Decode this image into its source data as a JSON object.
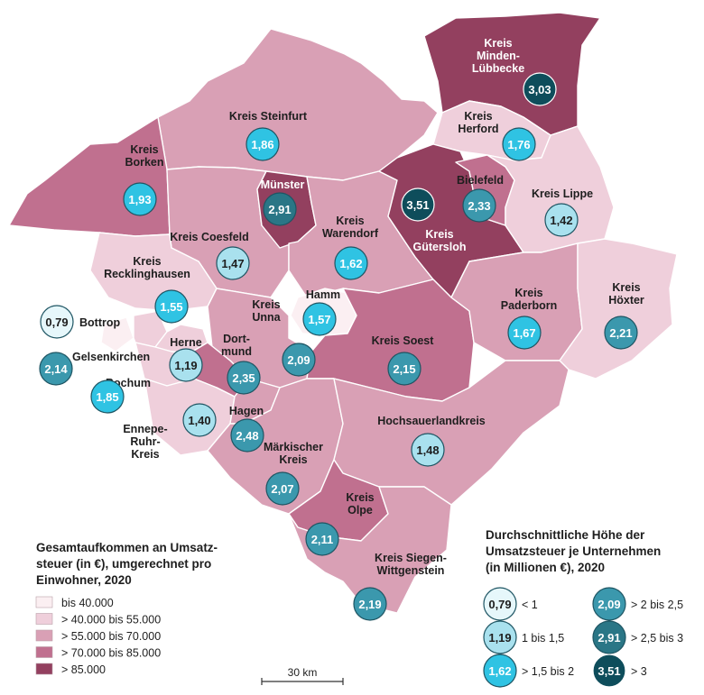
{
  "colors": {
    "class1": "#fbeff2",
    "class2": "#efcfdb",
    "class3": "#d9a0b5",
    "class4": "#c0708f",
    "class5": "#93405f",
    "bubble_lt1": "#e6f7fb",
    "bubble_1_15": "#a9e1ee",
    "bubble_15_2": "#2fc3e3",
    "bubble_2_25": "#3b98ad",
    "bubble_25_3": "#2a7686",
    "bubble_gt3": "#0e4d5b"
  },
  "regions": [
    {
      "id": "steinfurt",
      "name": "Kreis Steinfurt",
      "class": 3
    },
    {
      "id": "borken",
      "name": "Kreis\nBorken",
      "class": 4
    },
    {
      "id": "minden",
      "name": "Kreis\nMinden-\nLübbecke",
      "class": 5
    },
    {
      "id": "herford",
      "name": "Kreis\nHerford",
      "class": 2
    },
    {
      "id": "muenster",
      "name": "Münster",
      "class": 5
    },
    {
      "id": "coesfeld",
      "name": "Kreis Coesfeld",
      "class": 3
    },
    {
      "id": "warendorf",
      "name": "Kreis\nWarendorf",
      "class": 3
    },
    {
      "id": "guetersloh",
      "name": "Kreis\nGütersloh",
      "class": 5
    },
    {
      "id": "bielefeld",
      "name": "Bielefeld",
      "class": 4
    },
    {
      "id": "lippe",
      "name": "Kreis Lippe",
      "class": 2
    },
    {
      "id": "recklinghausen",
      "name": "Kreis\nRecklinghausen",
      "class": 2
    },
    {
      "id": "unna",
      "name": "Kreis\nUnna",
      "class": 3
    },
    {
      "id": "hamm",
      "name": "Hamm",
      "class": 1
    },
    {
      "id": "soest",
      "name": "Kreis Soest",
      "class": 4
    },
    {
      "id": "paderborn",
      "name": "Kreis\nPaderborn",
      "class": 3
    },
    {
      "id": "hoexter",
      "name": "Kreis\nHöxter",
      "class": 2
    },
    {
      "id": "bottrop",
      "name": "Bottrop",
      "class": 1
    },
    {
      "id": "gelsenkirchen",
      "name": "Gelsenkirchen",
      "class": 2
    },
    {
      "id": "herne",
      "name": "Herne",
      "class": 2
    },
    {
      "id": "dortmund",
      "name": "Dort-\nmund",
      "class": 4
    },
    {
      "id": "bochum",
      "name": "Bochum",
      "class": 2
    },
    {
      "id": "ennepe",
      "name": "Ennepe-\nRuhr-\nKreis",
      "class": 2
    },
    {
      "id": "hagen",
      "name": "Hagen",
      "class": 3
    },
    {
      "id": "hochsauerland",
      "name": "Hochsauerlandkreis",
      "class": 3
    },
    {
      "id": "maerkisch",
      "name": "Märkischer\nKreis",
      "class": 3
    },
    {
      "id": "olpe",
      "name": "Kreis\nOlpe",
      "class": 4
    },
    {
      "id": "siegen",
      "name": "Kreis Siegen-\nWittgenstein",
      "class": 3
    }
  ],
  "bubbles": [
    {
      "id": "minden",
      "value": "3,03",
      "class": "gt3"
    },
    {
      "id": "steinfurt",
      "value": "1,86",
      "class": "15_2"
    },
    {
      "id": "herford",
      "value": "1,76",
      "class": "15_2"
    },
    {
      "id": "borken",
      "value": "1,93",
      "class": "15_2"
    },
    {
      "id": "muenster",
      "value": "2,91",
      "class": "25_3"
    },
    {
      "id": "guetersloh",
      "value": "3,51",
      "class": "gt3"
    },
    {
      "id": "bielefeld",
      "value": "2,33",
      "class": "2_25"
    },
    {
      "id": "lippe",
      "value": "1,42",
      "class": "1_15"
    },
    {
      "id": "coesfeld",
      "value": "1,47",
      "class": "1_15"
    },
    {
      "id": "warendorf",
      "value": "1,62",
      "class": "15_2"
    },
    {
      "id": "recklinghausen",
      "value": "1,55",
      "class": "15_2"
    },
    {
      "id": "hamm",
      "value": "1,57",
      "class": "15_2"
    },
    {
      "id": "paderborn",
      "value": "1,67",
      "class": "15_2"
    },
    {
      "id": "hoexter",
      "value": "2,21",
      "class": "2_25"
    },
    {
      "id": "bottrop",
      "value": "0,79",
      "class": "lt1"
    },
    {
      "id": "gelsenkirchen",
      "value": "2,14",
      "class": "2_25"
    },
    {
      "id": "herne",
      "value": "1,19",
      "class": "1_15"
    },
    {
      "id": "unna",
      "value": "2,09",
      "class": "2_25"
    },
    {
      "id": "dortmund",
      "value": "2,35",
      "class": "2_25"
    },
    {
      "id": "soest",
      "value": "2,15",
      "class": "2_25"
    },
    {
      "id": "bochum",
      "value": "1,85",
      "class": "15_2"
    },
    {
      "id": "ennepe",
      "value": "1,40",
      "class": "1_15"
    },
    {
      "id": "hagen",
      "value": "2,48",
      "class": "2_25"
    },
    {
      "id": "hochsauerland",
      "value": "1,48",
      "class": "1_15"
    },
    {
      "id": "maerkisch",
      "value": "2,07",
      "class": "2_25"
    },
    {
      "id": "olpe",
      "value": "2,11",
      "class": "2_25"
    },
    {
      "id": "siegen",
      "value": "2,19",
      "class": "2_25"
    }
  ],
  "legend_left": {
    "title_lines": [
      "Gesamtaufkommen an Umsatz-",
      "steuer (in €), umgerechnet pro",
      "Einwohner, 2020"
    ],
    "items": [
      {
        "label": "bis 40.000",
        "class": 1
      },
      {
        "label": "> 40.000 bis 55.000",
        "class": 2
      },
      {
        "label": "> 55.000 bis 70.000",
        "class": 3
      },
      {
        "label": "> 70.000 bis 85.000",
        "class": 4
      },
      {
        "label": "> 85.000",
        "class": 5
      }
    ]
  },
  "legend_right": {
    "title_lines": [
      "Durchschnittliche Höhe der",
      "Umsatzsteuer je Unternehmen",
      "(in Millionen €), 2020"
    ],
    "items": [
      {
        "value": "0,79",
        "label": "< 1",
        "class": "lt1"
      },
      {
        "value": "1,19",
        "label": "1 bis 1,5",
        "class": "1_15"
      },
      {
        "value": "1,62",
        "label": "> 1,5 bis 2",
        "class": "15_2"
      },
      {
        "value": "2,09",
        "label": "> 2 bis 2,5",
        "class": "2_25"
      },
      {
        "value": "2,91",
        "label": "> 2,5 bis 3",
        "class": "25_3"
      },
      {
        "value": "3,51",
        "label": "> 3",
        "class": "gt3"
      }
    ]
  },
  "scale_bar": {
    "label": "30 km"
  }
}
